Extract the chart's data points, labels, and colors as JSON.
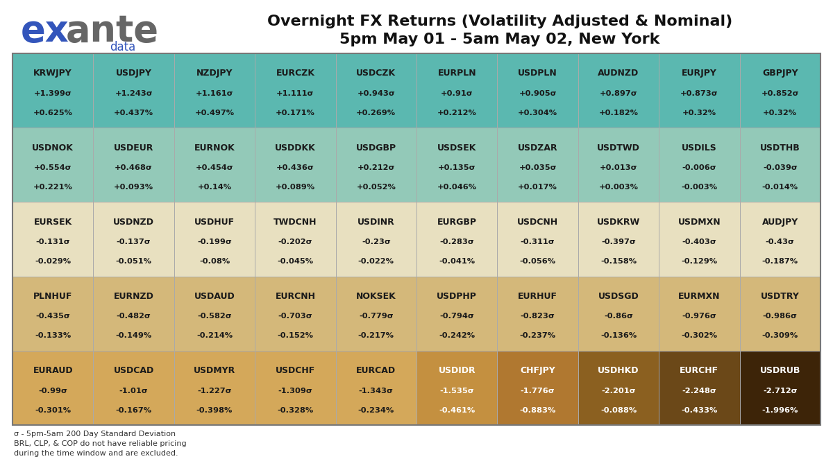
{
  "title_line1": "Overnight FX Returns (Volatility Adjusted & Nominal)",
  "title_line2": "5pm May 01 - 5am May 02, New York",
  "footnote": "σ - 5pm-5am 200 Day Standard Deviation\nBRL, CLP, & COP do not have reliable pricing\nduring the time window and are excluded.",
  "rows": [
    [
      {
        "pair": "KRWJPY",
        "sigma": "+1.399σ",
        "pct": "+0.625%"
      },
      {
        "pair": "USDJPY",
        "sigma": "+1.243σ",
        "pct": "+0.437%"
      },
      {
        "pair": "NZDJPY",
        "sigma": "+1.161σ",
        "pct": "+0.497%"
      },
      {
        "pair": "EURCZK",
        "sigma": "+1.111σ",
        "pct": "+0.171%"
      },
      {
        "pair": "USDCZK",
        "sigma": "+0.943σ",
        "pct": "+0.269%"
      },
      {
        "pair": "EURPLN",
        "sigma": "+0.91σ",
        "pct": "+0.212%"
      },
      {
        "pair": "USDPLN",
        "sigma": "+0.905σ",
        "pct": "+0.304%"
      },
      {
        "pair": "AUDNZD",
        "sigma": "+0.897σ",
        "pct": "+0.182%"
      },
      {
        "pair": "EURJPY",
        "sigma": "+0.873σ",
        "pct": "+0.32%"
      },
      {
        "pair": "GBPJPY",
        "sigma": "+0.852σ",
        "pct": "+0.32%"
      }
    ],
    [
      {
        "pair": "USDNOK",
        "sigma": "+0.554σ",
        "pct": "+0.221%"
      },
      {
        "pair": "USDEUR",
        "sigma": "+0.468σ",
        "pct": "+0.093%"
      },
      {
        "pair": "EURNOK",
        "sigma": "+0.454σ",
        "pct": "+0.14%"
      },
      {
        "pair": "USDDKK",
        "sigma": "+0.436σ",
        "pct": "+0.089%"
      },
      {
        "pair": "USDGBP",
        "sigma": "+0.212σ",
        "pct": "+0.052%"
      },
      {
        "pair": "USDSEK",
        "sigma": "+0.135σ",
        "pct": "+0.046%"
      },
      {
        "pair": "USDZAR",
        "sigma": "+0.035σ",
        "pct": "+0.017%"
      },
      {
        "pair": "USDTWD",
        "sigma": "+0.013σ",
        "pct": "+0.003%"
      },
      {
        "pair": "USDILS",
        "sigma": "-0.006σ",
        "pct": "-0.003%"
      },
      {
        "pair": "USDTHB",
        "sigma": "-0.039σ",
        "pct": "-0.014%"
      }
    ],
    [
      {
        "pair": "EURSEK",
        "sigma": "-0.131σ",
        "pct": "-0.029%"
      },
      {
        "pair": "USDNZD",
        "sigma": "-0.137σ",
        "pct": "-0.051%"
      },
      {
        "pair": "USDHUF",
        "sigma": "-0.199σ",
        "pct": "-0.08%"
      },
      {
        "pair": "TWDCNH",
        "sigma": "-0.202σ",
        "pct": "-0.045%"
      },
      {
        "pair": "USDINR",
        "sigma": "-0.23σ",
        "pct": "-0.022%"
      },
      {
        "pair": "EURGBP",
        "sigma": "-0.283σ",
        "pct": "-0.041%"
      },
      {
        "pair": "USDCNH",
        "sigma": "-0.311σ",
        "pct": "-0.056%"
      },
      {
        "pair": "USDKRW",
        "sigma": "-0.397σ",
        "pct": "-0.158%"
      },
      {
        "pair": "USDMXN",
        "sigma": "-0.403σ",
        "pct": "-0.129%"
      },
      {
        "pair": "AUDJPY",
        "sigma": "-0.43σ",
        "pct": "-0.187%"
      }
    ],
    [
      {
        "pair": "PLNHUF",
        "sigma": "-0.435σ",
        "pct": "-0.133%"
      },
      {
        "pair": "EURNZD",
        "sigma": "-0.482σ",
        "pct": "-0.149%"
      },
      {
        "pair": "USDAUD",
        "sigma": "-0.582σ",
        "pct": "-0.214%"
      },
      {
        "pair": "EURCNH",
        "sigma": "-0.703σ",
        "pct": "-0.152%"
      },
      {
        "pair": "NOKSEK",
        "sigma": "-0.779σ",
        "pct": "-0.217%"
      },
      {
        "pair": "USDPHP",
        "sigma": "-0.794σ",
        "pct": "-0.242%"
      },
      {
        "pair": "EURHUF",
        "sigma": "-0.823σ",
        "pct": "-0.237%"
      },
      {
        "pair": "USDSGD",
        "sigma": "-0.86σ",
        "pct": "-0.136%"
      },
      {
        "pair": "EURMXN",
        "sigma": "-0.976σ",
        "pct": "-0.302%"
      },
      {
        "pair": "USDTRY",
        "sigma": "-0.986σ",
        "pct": "-0.309%"
      }
    ],
    [
      {
        "pair": "EURAUD",
        "sigma": "-0.99σ",
        "pct": "-0.301%",
        "highlight": false
      },
      {
        "pair": "USDCAD",
        "sigma": "-1.01σ",
        "pct": "-0.167%",
        "highlight": false
      },
      {
        "pair": "USDMYR",
        "sigma": "-1.227σ",
        "pct": "-0.398%",
        "highlight": false
      },
      {
        "pair": "USDCHF",
        "sigma": "-1.309σ",
        "pct": "-0.328%",
        "highlight": false
      },
      {
        "pair": "EURCAD",
        "sigma": "-1.343σ",
        "pct": "-0.234%",
        "highlight": false
      },
      {
        "pair": "USDIDR",
        "sigma": "-1.535σ",
        "pct": "-0.461%",
        "highlight": true
      },
      {
        "pair": "CHFJPY",
        "sigma": "-1.776σ",
        "pct": "-0.883%",
        "highlight": true
      },
      {
        "pair": "USDHKD",
        "sigma": "-2.201σ",
        "pct": "-0.088%",
        "highlight": true
      },
      {
        "pair": "EURCHF",
        "sigma": "-2.248σ",
        "pct": "-0.433%",
        "highlight": true
      },
      {
        "pair": "USDRUB",
        "sigma": "-2.712σ",
        "pct": "-1.996%",
        "highlight": true
      }
    ]
  ],
  "row_colors": [
    "#5BB8B0",
    "#93C9B8",
    "#E8E0C0",
    "#D4B87A",
    "#D4A85A"
  ],
  "row5_highlight_colors": [
    "#C49040",
    "#B07830",
    "#8B6020",
    "#6B4818",
    "#3D2408"
  ],
  "footnote_color": "#333333",
  "bg_color": "#FFFFFF",
  "border_color": "#999999",
  "text_color": "#1A1A1A",
  "text_color_light": "#FFFFFF",
  "exante_blue": "#3355BB",
  "exante_gray": "#666666",
  "title_color": "#111111"
}
